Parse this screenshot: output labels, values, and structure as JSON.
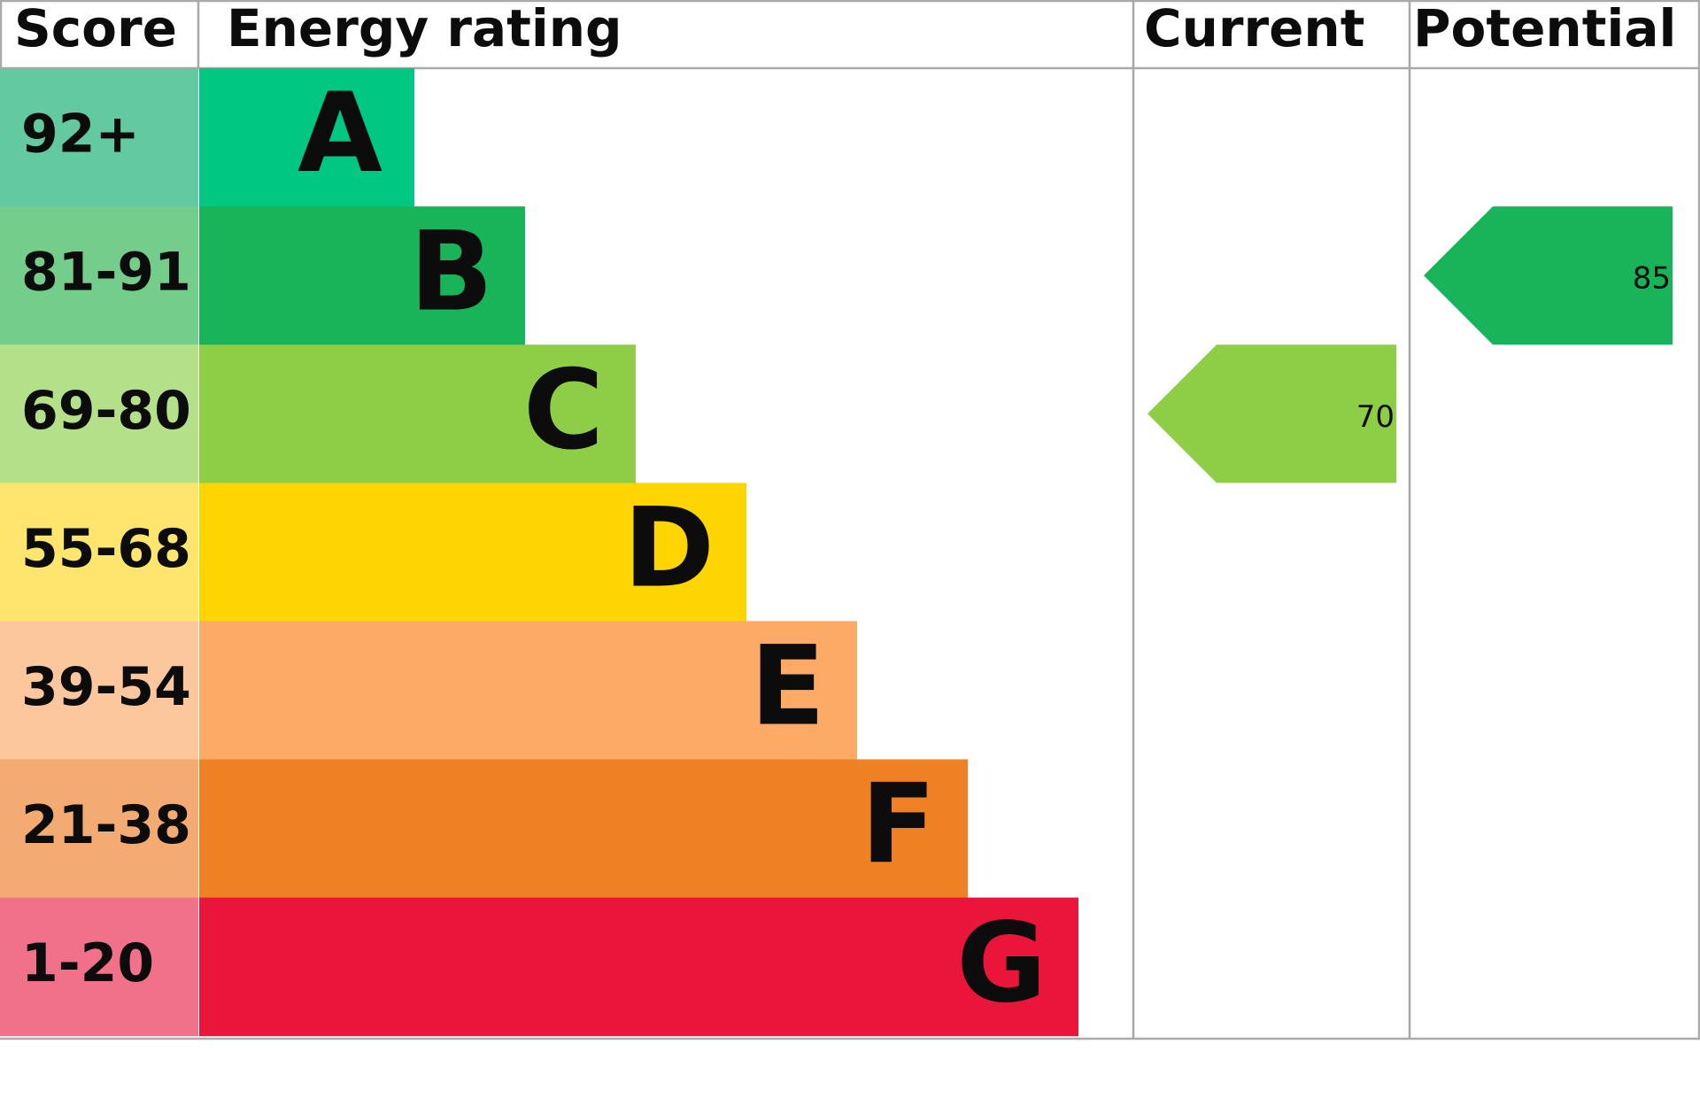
{
  "header": {
    "score": "Score",
    "rating": "Energy rating",
    "current": "Current",
    "potential": "Potential"
  },
  "bands": [
    {
      "score": "92+",
      "letter": "A",
      "score_color": "#63c9a0",
      "color": "#00c781"
    },
    {
      "score": "81-91",
      "letter": "B",
      "score_color": "#75cd8b",
      "color": "#19b459"
    },
    {
      "score": "69-80",
      "letter": "C",
      "score_color": "#b5e08a",
      "color": "#8dce46"
    },
    {
      "score": "55-68",
      "letter": "D",
      "score_color": "#fee56e",
      "color": "#ffd500"
    },
    {
      "score": "39-54",
      "letter": "E",
      "score_color": "#fdc79e",
      "color": "#fcaa65"
    },
    {
      "score": "21-38",
      "letter": "F",
      "score_color": "#f4ab72",
      "color": "#ef8023"
    },
    {
      "score": "1-20",
      "letter": "G",
      "score_color": "#f2718a",
      "color": "#e9153b"
    }
  ],
  "current": 70,
  "potential": 85
}
